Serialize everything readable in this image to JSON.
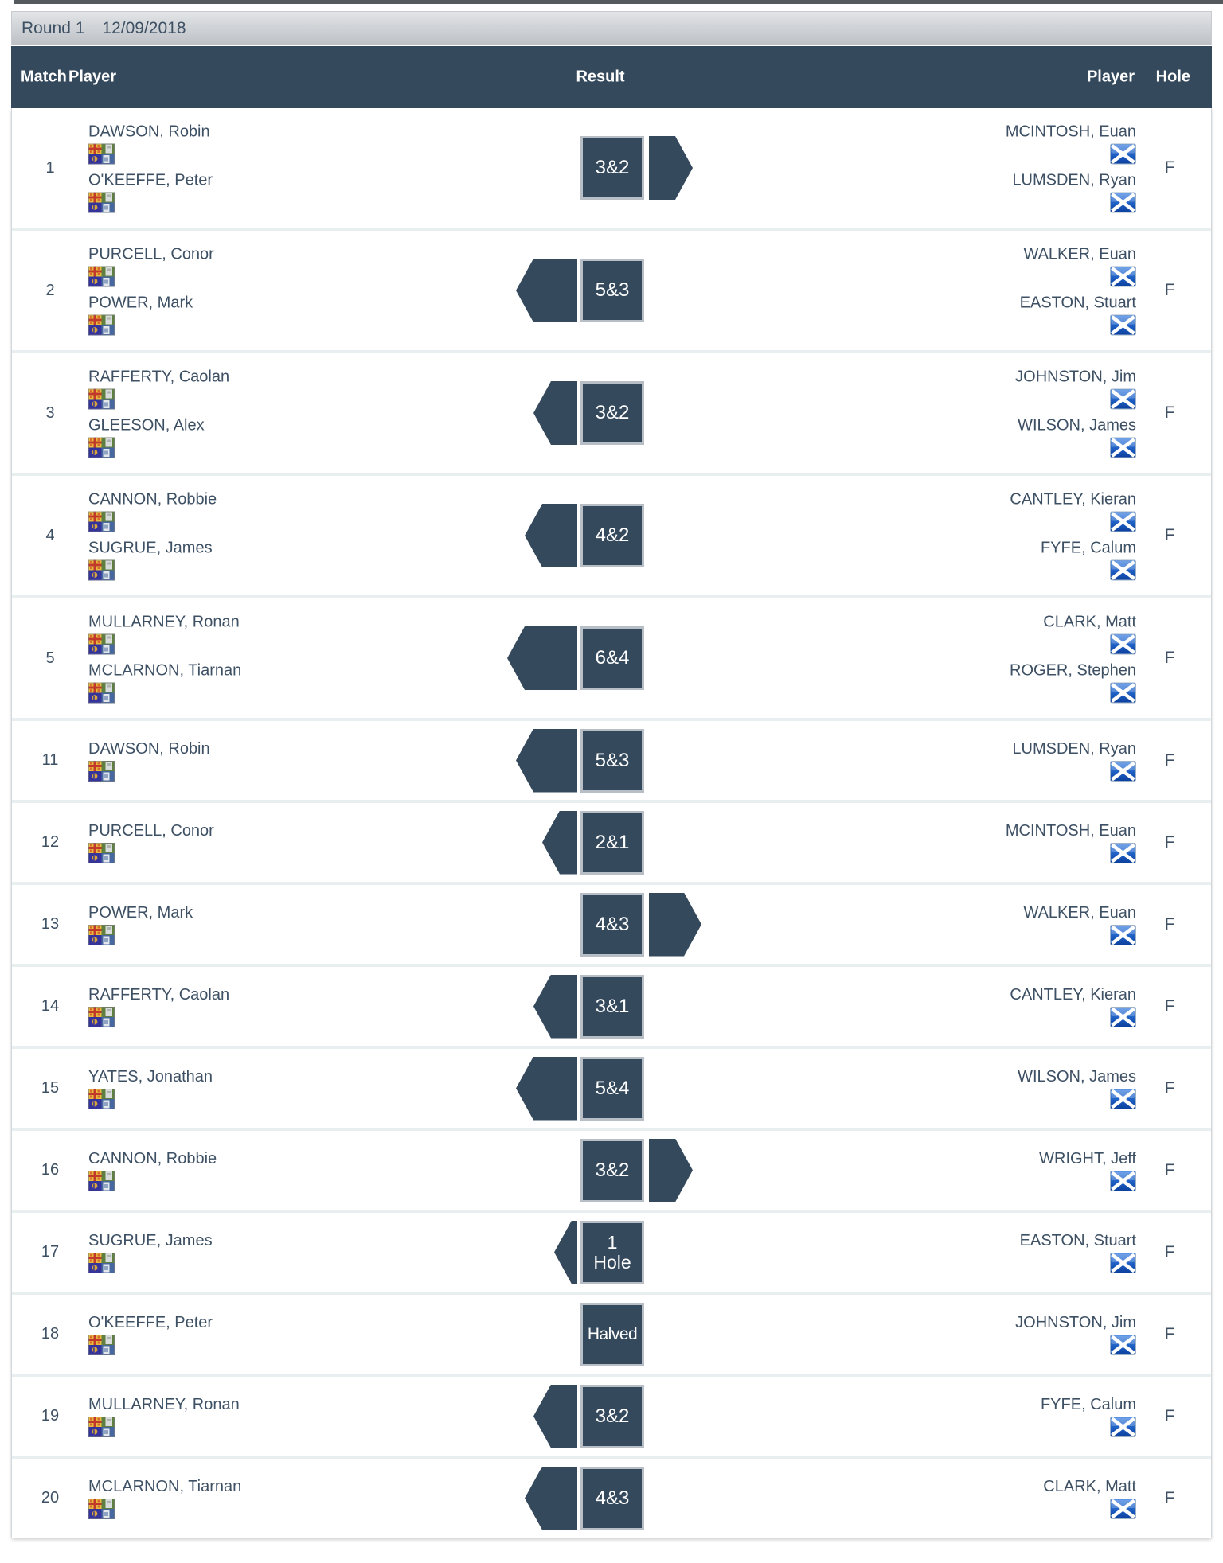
{
  "top_bar": {
    "round_label": "Round 1",
    "date": "12/09/2018"
  },
  "colors": {
    "navy": "#35495d",
    "name_text": "#3d5064",
    "bar_top": "#e2e4e6",
    "bar_bottom": "#bdc1c6",
    "row_separator": "#e9eef0",
    "box_border": "#b8bec6",
    "scotland_blue": "#1e5fc4"
  },
  "table": {
    "headers": {
      "match": "Match",
      "player_left": "Player",
      "result": "Result",
      "player_right": "Player",
      "hole": "Hole"
    },
    "rows": [
      {
        "match": "1",
        "left_players": [
          "DAWSON, Robin",
          "O'KEEFFE, Peter"
        ],
        "right_players": [
          "MCINTOSH, Euan",
          "LUMSDEN, Ryan"
        ],
        "result": "3&2",
        "winner": "right",
        "hole": "F"
      },
      {
        "match": "2",
        "left_players": [
          "PURCELL, Conor",
          "POWER, Mark"
        ],
        "right_players": [
          "WALKER, Euan",
          "EASTON, Stuart"
        ],
        "result": "5&3",
        "winner": "left",
        "hole": "F"
      },
      {
        "match": "3",
        "left_players": [
          "RAFFERTY, Caolan",
          "GLEESON, Alex"
        ],
        "right_players": [
          "JOHNSTON, Jim",
          "WILSON, James"
        ],
        "result": "3&2",
        "winner": "left",
        "hole": "F"
      },
      {
        "match": "4",
        "left_players": [
          "CANNON, Robbie",
          "SUGRUE, James"
        ],
        "right_players": [
          "CANTLEY, Kieran",
          "FYFE, Calum"
        ],
        "result": "4&2",
        "winner": "left",
        "hole": "F"
      },
      {
        "match": "5",
        "left_players": [
          "MULLARNEY, Ronan",
          "MCLARNON, Tiarnan"
        ],
        "right_players": [
          "CLARK, Matt",
          "ROGER, Stephen"
        ],
        "result": "6&4",
        "winner": "left",
        "hole": "F"
      },
      {
        "match": "11",
        "left_players": [
          "DAWSON, Robin"
        ],
        "right_players": [
          "LUMSDEN, Ryan"
        ],
        "result": "5&3",
        "winner": "left",
        "hole": "F"
      },
      {
        "match": "12",
        "left_players": [
          "PURCELL, Conor"
        ],
        "right_players": [
          "MCINTOSH, Euan"
        ],
        "result": "2&1",
        "winner": "left",
        "hole": "F"
      },
      {
        "match": "13",
        "left_players": [
          "POWER, Mark"
        ],
        "right_players": [
          "WALKER, Euan"
        ],
        "result": "4&3",
        "winner": "right",
        "hole": "F"
      },
      {
        "match": "14",
        "left_players": [
          "RAFFERTY, Caolan"
        ],
        "right_players": [
          "CANTLEY, Kieran"
        ],
        "result": "3&1",
        "winner": "left",
        "hole": "F"
      },
      {
        "match": "15",
        "left_players": [
          "YATES, Jonathan"
        ],
        "right_players": [
          "WILSON, James"
        ],
        "result": "5&4",
        "winner": "left",
        "hole": "F"
      },
      {
        "match": "16",
        "left_players": [
          "CANNON, Robbie"
        ],
        "right_players": [
          "WRIGHT, Jeff"
        ],
        "result": "3&2",
        "winner": "right",
        "hole": "F"
      },
      {
        "match": "17",
        "left_players": [
          "SUGRUE, James"
        ],
        "right_players": [
          "EASTON, Stuart"
        ],
        "result": "1 Hole",
        "winner": "left",
        "hole": "F"
      },
      {
        "match": "18",
        "left_players": [
          "O'KEEFFE, Peter"
        ],
        "right_players": [
          "JOHNSTON, Jim"
        ],
        "result": "Halved",
        "winner": "none",
        "hole": "F"
      },
      {
        "match": "19",
        "left_players": [
          "MULLARNEY, Ronan"
        ],
        "right_players": [
          "FYFE, Calum"
        ],
        "result": "3&2",
        "winner": "left",
        "hole": "F"
      },
      {
        "match": "20",
        "left_players": [
          "MCLARNON, Tiarnan"
        ],
        "right_players": [
          "CLARK, Matt"
        ],
        "result": "4&3",
        "winner": "left",
        "hole": "F"
      }
    ]
  }
}
